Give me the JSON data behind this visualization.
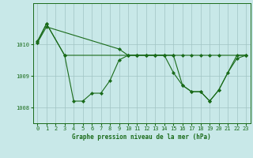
{
  "bg_color": "#c8e8e8",
  "line_color": "#1a6b1a",
  "grid_color": "#a0c4c4",
  "xlabel": "Graphe pression niveau de la mer (hPa)",
  "yticks": [
    1008,
    1009,
    1010
  ],
  "ylim": [
    1007.5,
    1011.3
  ],
  "xlim": [
    -0.5,
    23.5
  ],
  "line1_x": [
    0,
    1,
    3,
    4,
    5,
    6,
    7,
    8,
    9,
    10,
    11,
    12,
    13,
    14,
    15,
    16,
    17,
    18,
    19,
    20,
    21,
    22,
    23
  ],
  "line1_y": [
    1010.1,
    1010.65,
    1009.65,
    1008.2,
    1008.2,
    1008.45,
    1008.45,
    1008.85,
    1009.5,
    1009.65,
    1009.65,
    1009.65,
    1009.65,
    1009.65,
    1009.1,
    1008.7,
    1008.5,
    1008.5,
    1008.2,
    1008.55,
    1009.1,
    1009.55,
    1009.65
  ],
  "line2_x": [
    0,
    1,
    3,
    10,
    11,
    12,
    13,
    14,
    15,
    16,
    17,
    18,
    19,
    20,
    23
  ],
  "line2_y": [
    1010.05,
    1010.65,
    1009.65,
    1009.65,
    1009.65,
    1009.65,
    1009.65,
    1009.65,
    1009.65,
    1009.65,
    1009.65,
    1009.65,
    1009.65,
    1009.65,
    1009.65
  ],
  "line3_x": [
    0,
    1,
    9,
    10,
    11,
    12,
    13,
    14,
    15,
    16,
    17,
    18,
    19,
    20,
    22,
    23
  ],
  "line3_y": [
    1010.05,
    1010.55,
    1009.85,
    1009.65,
    1009.65,
    1009.65,
    1009.65,
    1009.65,
    1009.65,
    1008.7,
    1008.5,
    1008.5,
    1008.2,
    1008.55,
    1009.65,
    1009.65
  ]
}
